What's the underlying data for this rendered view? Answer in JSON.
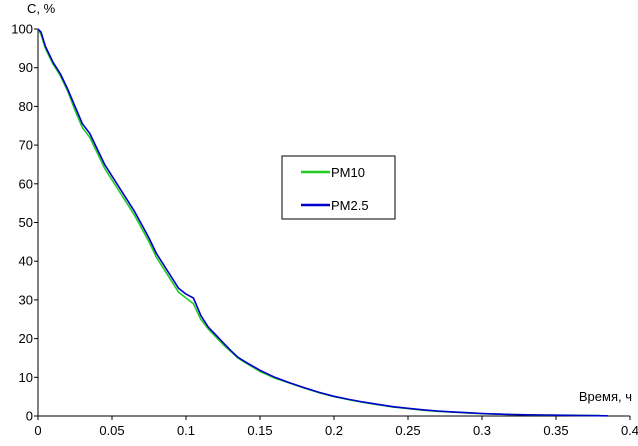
{
  "chart_data": {
    "type": "line",
    "title": "",
    "xlabel": "Время, ч",
    "ylabel": "C, %",
    "xlim": [
      0,
      0.4
    ],
    "ylim": [
      0,
      100
    ],
    "x_ticks": [
      "0",
      "0.05",
      "0.1",
      "0.15",
      "0.2",
      "0.25",
      "0.3",
      "0.35",
      "0.4"
    ],
    "y_ticks": [
      "0",
      "10",
      "20",
      "30",
      "40",
      "50",
      "60",
      "70",
      "80",
      "90",
      "100"
    ],
    "grid": false,
    "legend": "center-right",
    "series": [
      {
        "name": "PM10",
        "color": "#22cc22",
        "points": [
          [
            0,
            100
          ],
          [
            0.002,
            98.6
          ],
          [
            0.005,
            95
          ],
          [
            0.01,
            91
          ],
          [
            0.015,
            88
          ],
          [
            0.02,
            84
          ],
          [
            0.025,
            79
          ],
          [
            0.03,
            74.5
          ],
          [
            0.035,
            72
          ],
          [
            0.04,
            68
          ],
          [
            0.045,
            64
          ],
          [
            0.05,
            61
          ],
          [
            0.055,
            58
          ],
          [
            0.06,
            55
          ],
          [
            0.065,
            52
          ],
          [
            0.07,
            48.5
          ],
          [
            0.075,
            45
          ],
          [
            0.08,
            41
          ],
          [
            0.085,
            38
          ],
          [
            0.09,
            35
          ],
          [
            0.095,
            32
          ],
          [
            0.1,
            30.5
          ],
          [
            0.105,
            29
          ],
          [
            0.11,
            25
          ],
          [
            0.115,
            22.5
          ],
          [
            0.12,
            20.5
          ],
          [
            0.125,
            18.5
          ],
          [
            0.13,
            16.8
          ],
          [
            0.135,
            15
          ],
          [
            0.14,
            13.8
          ],
          [
            0.15,
            11.5
          ],
          [
            0.16,
            9.8
          ],
          [
            0.17,
            8.5
          ],
          [
            0.18,
            7.2
          ],
          [
            0.19,
            6
          ],
          [
            0.2,
            5
          ],
          [
            0.21,
            4.2
          ],
          [
            0.22,
            3.5
          ],
          [
            0.23,
            2.9
          ],
          [
            0.24,
            2.3
          ],
          [
            0.25,
            1.9
          ],
          [
            0.26,
            1.5
          ],
          [
            0.27,
            1.2
          ],
          [
            0.28,
            1
          ],
          [
            0.29,
            0.8
          ],
          [
            0.3,
            0.6
          ],
          [
            0.31,
            0.5
          ],
          [
            0.32,
            0.4
          ],
          [
            0.33,
            0.3
          ],
          [
            0.34,
            0.25
          ],
          [
            0.35,
            0.2
          ],
          [
            0.36,
            0.2
          ],
          [
            0.37,
            0.15
          ],
          [
            0.38,
            0.1
          ]
        ]
      },
      {
        "name": "PM2.5",
        "color": "#0000cc",
        "points": [
          [
            0,
            100
          ],
          [
            0.002,
            99.2
          ],
          [
            0.005,
            95.5
          ],
          [
            0.01,
            91.5
          ],
          [
            0.015,
            88.5
          ],
          [
            0.02,
            84.5
          ],
          [
            0.025,
            80
          ],
          [
            0.03,
            75.5
          ],
          [
            0.035,
            73
          ],
          [
            0.04,
            69
          ],
          [
            0.045,
            65
          ],
          [
            0.05,
            62
          ],
          [
            0.055,
            59
          ],
          [
            0.06,
            56
          ],
          [
            0.065,
            53
          ],
          [
            0.07,
            49.5
          ],
          [
            0.075,
            46
          ],
          [
            0.08,
            42
          ],
          [
            0.085,
            39
          ],
          [
            0.09,
            36
          ],
          [
            0.095,
            33
          ],
          [
            0.1,
            31.5
          ],
          [
            0.105,
            30.5
          ],
          [
            0.11,
            26
          ],
          [
            0.115,
            23
          ],
          [
            0.12,
            21
          ],
          [
            0.125,
            19
          ],
          [
            0.13,
            17
          ],
          [
            0.135,
            15.2
          ],
          [
            0.14,
            14
          ],
          [
            0.15,
            11.8
          ],
          [
            0.16,
            10
          ],
          [
            0.17,
            8.6
          ],
          [
            0.18,
            7.3
          ],
          [
            0.19,
            6.1
          ],
          [
            0.2,
            5.1
          ],
          [
            0.21,
            4.3
          ],
          [
            0.22,
            3.6
          ],
          [
            0.23,
            3
          ],
          [
            0.24,
            2.4
          ],
          [
            0.25,
            2
          ],
          [
            0.26,
            1.6
          ],
          [
            0.27,
            1.3
          ],
          [
            0.28,
            1.05
          ],
          [
            0.29,
            0.85
          ],
          [
            0.3,
            0.65
          ],
          [
            0.31,
            0.5
          ],
          [
            0.32,
            0.4
          ],
          [
            0.33,
            0.3
          ],
          [
            0.34,
            0.25
          ],
          [
            0.35,
            0.2
          ],
          [
            0.36,
            0.15
          ],
          [
            0.37,
            0.1
          ],
          [
            0.385,
            0.05
          ]
        ]
      }
    ]
  }
}
